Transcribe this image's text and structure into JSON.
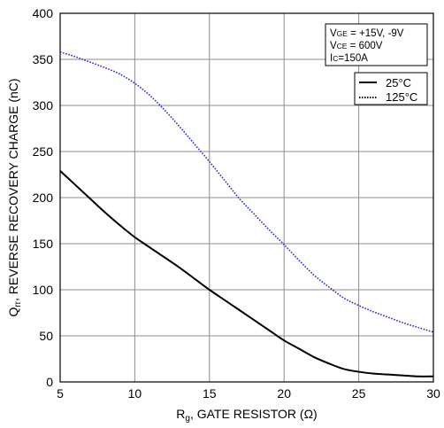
{
  "chart_data": {
    "type": "line",
    "xlabel": {
      "main": "R",
      "sub": "g",
      "rest": ", GATE RESISTOR (Ω)"
    },
    "ylabel": {
      "main": "Q",
      "sub": "rr",
      "rest": ", REVERSE RECOVERY CHARGE (nC)"
    },
    "xlim": [
      5,
      30
    ],
    "ylim": [
      0,
      400
    ],
    "xticks": [
      "5",
      "10",
      "15",
      "20",
      "25",
      "30"
    ],
    "yticks": [
      "0",
      "50",
      "100",
      "150",
      "200",
      "250",
      "300",
      "350",
      "400"
    ],
    "grid": true,
    "conditions": [
      {
        "main": "V",
        "sub": "GE",
        "rest": " = +15V, -9V"
      },
      {
        "main": "V",
        "sub": "CE",
        "rest": " = 600V"
      },
      {
        "main": "I",
        "sub": "C",
        "rest": "=150A"
      }
    ],
    "legend_position": "top-right",
    "series": [
      {
        "name": "25°C",
        "color": "#000000",
        "style": "solid",
        "x": [
          5,
          6,
          7,
          8,
          9,
          10,
          11,
          12,
          13,
          14,
          15,
          16,
          17,
          18,
          19,
          20,
          21,
          22,
          23,
          24,
          25,
          26,
          27,
          28,
          29,
          30
        ],
        "y": [
          229,
          214,
          199,
          184,
          170,
          157,
          146,
          135,
          124,
          112,
          100,
          89,
          78,
          67,
          56,
          45,
          36,
          27,
          20,
          14,
          11,
          9,
          8,
          7,
          6,
          6
        ]
      },
      {
        "name": "125°C",
        "color": "#2a2ad4",
        "style": "dotted",
        "x": [
          5,
          6,
          7,
          8,
          9,
          10,
          11,
          12,
          13,
          14,
          15,
          16,
          17,
          18,
          19,
          20,
          21,
          22,
          23,
          24,
          25,
          26,
          27,
          28,
          29,
          30
        ],
        "y": [
          358,
          353,
          347,
          341,
          334,
          324,
          311,
          295,
          277,
          258,
          239,
          219,
          199,
          182,
          165,
          149,
          132,
          116,
          103,
          91,
          83,
          76,
          70,
          64,
          59,
          54
        ]
      }
    ]
  }
}
